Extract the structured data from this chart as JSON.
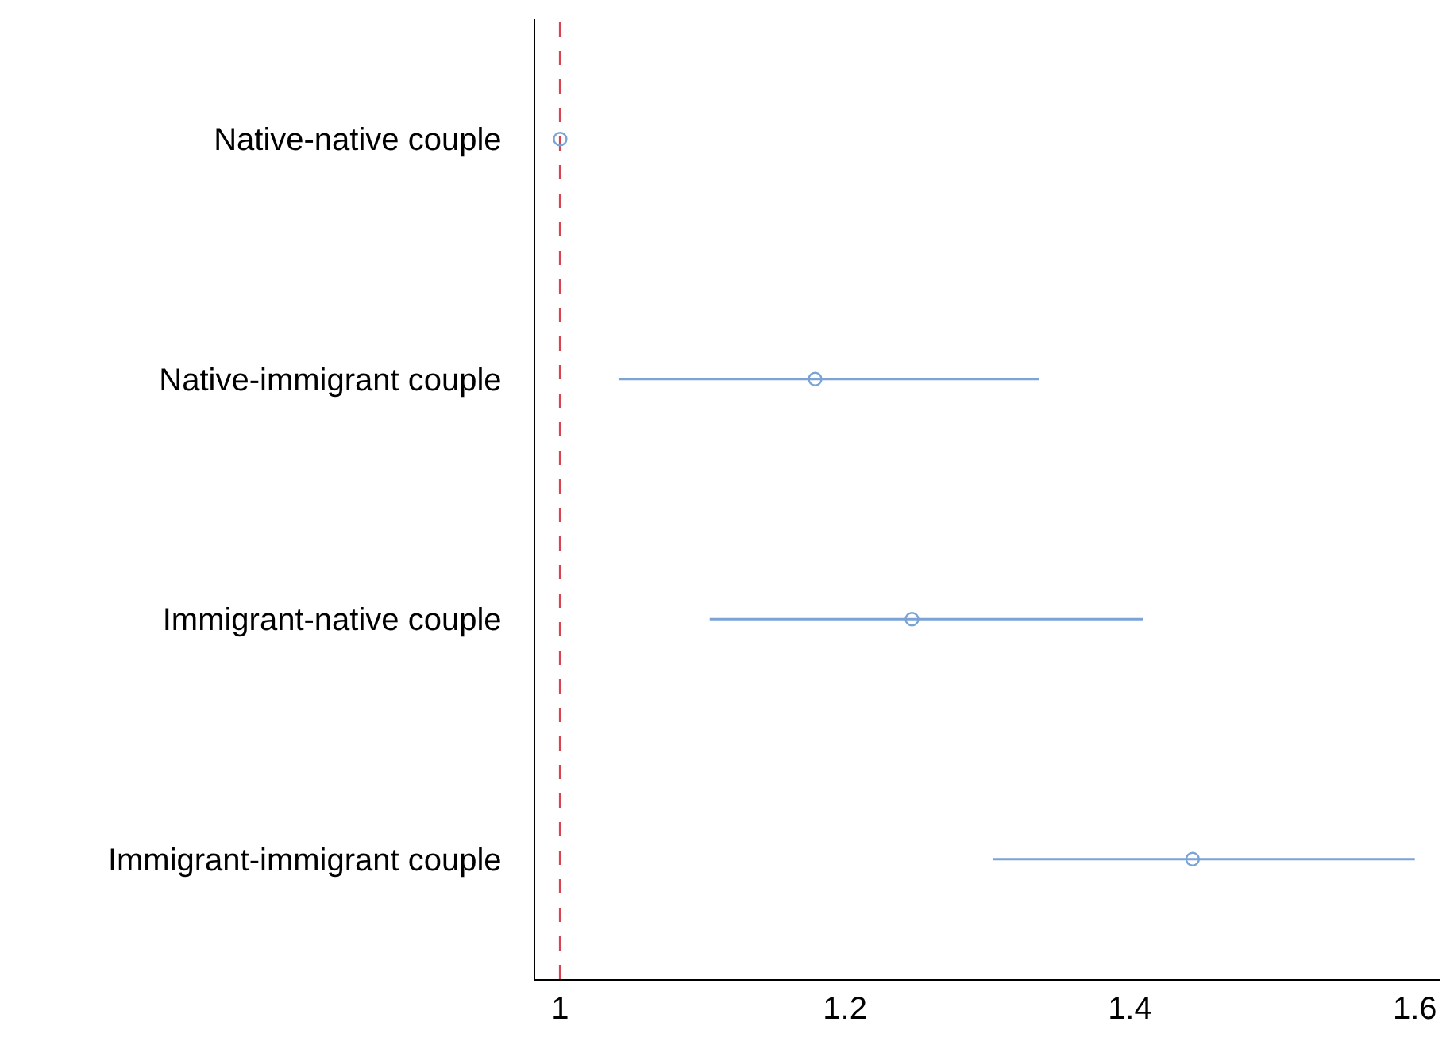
{
  "chart_data": {
    "type": "scatter",
    "orientation": "horizontal",
    "categories": [
      "Native-native couple",
      "Native-immigrant couple",
      "Immigrant-native couple",
      "Immigrant-immigrant couple"
    ],
    "values": [
      1.0,
      1.179,
      1.247,
      1.444
    ],
    "errors": [
      null,
      [
        1.041,
        1.336
      ],
      [
        1.105,
        1.409
      ],
      [
        1.304,
        1.6
      ]
    ],
    "color": "#7ba3d6",
    "marker": "circle",
    "xlim": [
      0.9825,
      1.618
    ],
    "xticks": [
      1,
      1.2,
      1.4,
      1.6
    ],
    "ref_lines": [
      {
        "axis": "x",
        "value": 1,
        "color": "#d9434f",
        "line_style": "dashed"
      }
    ]
  }
}
